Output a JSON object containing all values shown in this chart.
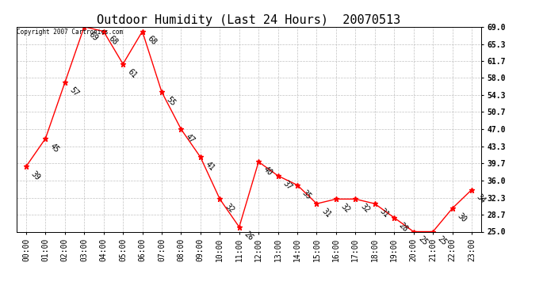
{
  "title": "Outdoor Humidity (Last 24 Hours)  20070513",
  "copyright": "Copyright 2007 Cartronics.com",
  "x_labels": [
    "00:00",
    "01:00",
    "02:00",
    "03:00",
    "04:00",
    "05:00",
    "06:00",
    "07:00",
    "08:00",
    "09:00",
    "10:00",
    "11:00",
    "12:00",
    "13:00",
    "14:00",
    "15:00",
    "16:00",
    "17:00",
    "18:00",
    "19:00",
    "20:00",
    "21:00",
    "22:00",
    "23:00"
  ],
  "y_values": [
    39,
    45,
    57,
    69,
    68,
    61,
    68,
    55,
    47,
    41,
    32,
    26,
    40,
    37,
    35,
    31,
    32,
    32,
    31,
    28,
    25,
    25,
    30,
    34
  ],
  "y_ticks": [
    25.0,
    28.7,
    32.3,
    36.0,
    39.7,
    43.3,
    47.0,
    50.7,
    54.3,
    58.0,
    61.7,
    65.3,
    69.0
  ],
  "ylim": [
    25.0,
    69.0
  ],
  "line_color": "red",
  "marker_color": "red",
  "bg_color": "white",
  "grid_color": "#bbbbbb",
  "title_fontsize": 11,
  "tick_fontsize": 7,
  "annotation_fontsize": 7
}
